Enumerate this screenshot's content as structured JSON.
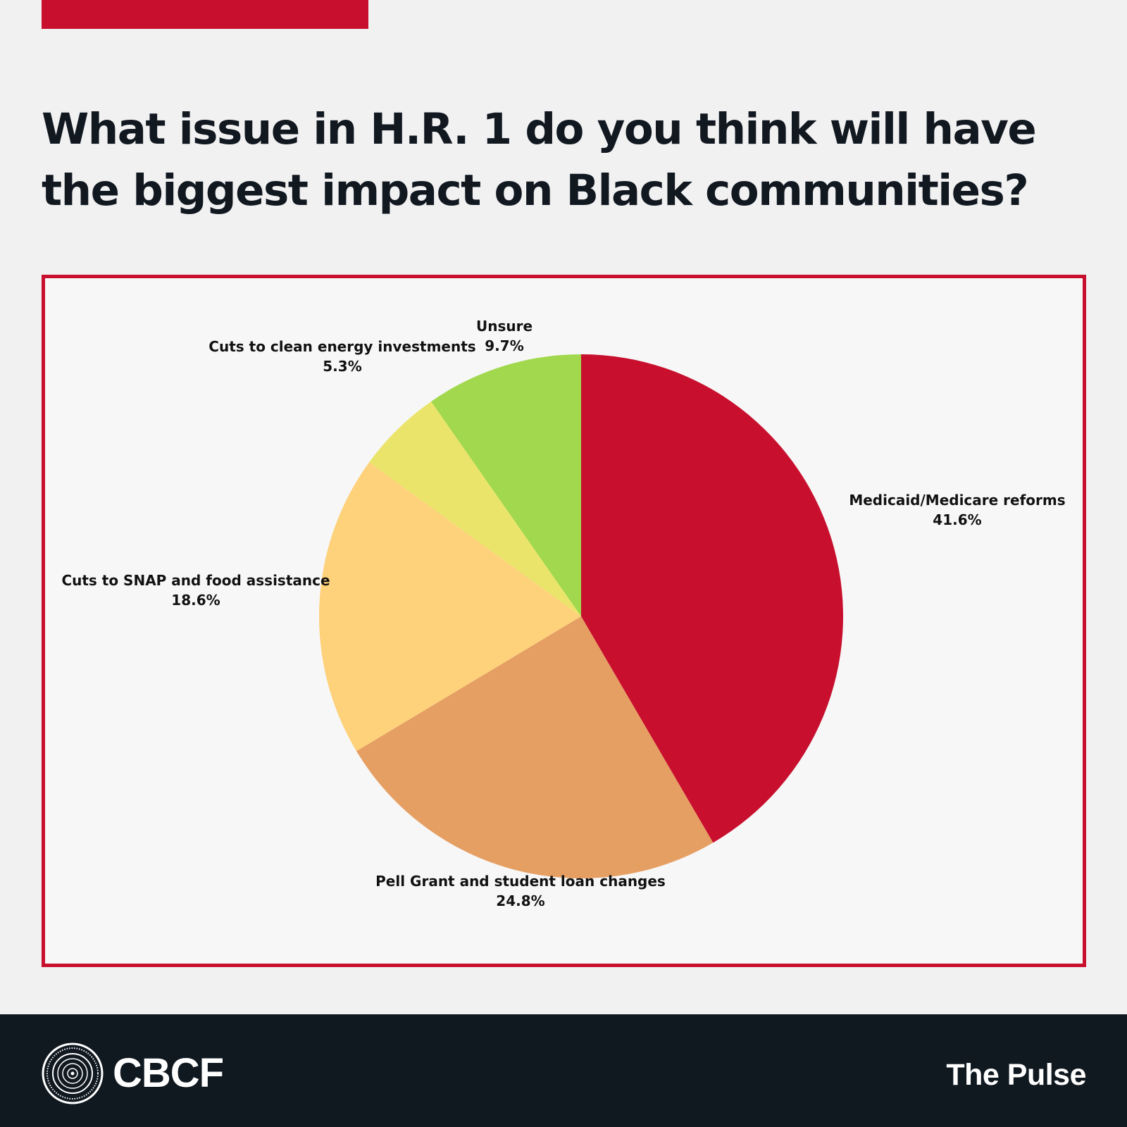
{
  "colors": {
    "accent": "#c8102e",
    "footer_bg": "#101820",
    "text_dark": "#111820"
  },
  "header": {
    "title": "What issue in H.R. 1 do you think will have the biggest impact on Black communities?"
  },
  "chart_data": {
    "type": "pie",
    "title": "What issue in H.R. 1 do you think will have the biggest impact on Black communities?",
    "unit": "%",
    "start": "12 o'clock, clockwise",
    "slices": [
      {
        "label": "Medicaid/Medicare reforms",
        "value": 41.6,
        "display": "41.6%",
        "color": "#c8102e"
      },
      {
        "label": "Pell Grant and student loan changes",
        "value": 24.8,
        "display": "24.8%",
        "color": "#e69f63"
      },
      {
        "label": "Cuts to SNAP and food assistance",
        "value": 18.6,
        "display": "18.6%",
        "color": "#fed17b"
      },
      {
        "label": "Cuts to clean energy investments",
        "value": 5.3,
        "display": "5.3%",
        "color": "#ebe46a"
      },
      {
        "label": "Unsure",
        "value": 9.7,
        "display": "9.7%",
        "color": "#a1d84d"
      }
    ]
  },
  "footer": {
    "logo_text": "CBCF",
    "logo_icon": "seal-icon",
    "right_text": "The Pulse"
  }
}
